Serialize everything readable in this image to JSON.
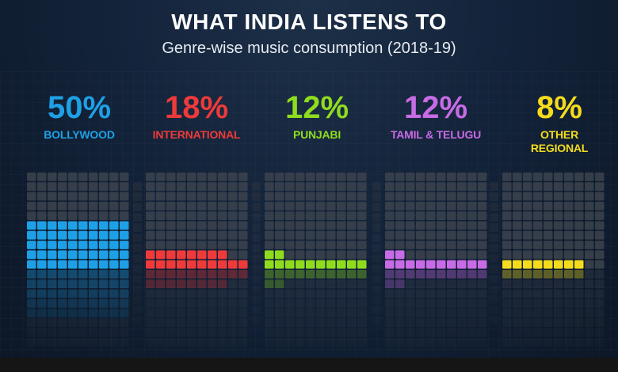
{
  "title": "WHAT INDIA LISTENS TO",
  "subtitle": "Genre-wise music consumption (2018-19)",
  "colors": {
    "background": "#0f1b2b",
    "empty_cell": "#3a414d",
    "bollywood": "#1ea0e6",
    "international": "#ee3a3a",
    "punjabi": "#8fdc1e",
    "tamil_telugu": "#c86be6",
    "other_regional": "#f4dc1c"
  },
  "chart_data": {
    "type": "waffle",
    "title": "WHAT INDIA LISTENS TO",
    "subtitle": "Genre-wise music consumption (2018-19)",
    "unit": "%",
    "categories": [
      {
        "name": "BOLLYWOOD",
        "value": 50,
        "label": "50%",
        "color": "#1ea0e6"
      },
      {
        "name": "INTERNATIONAL",
        "value": 18,
        "label": "18%",
        "color": "#ee3a3a"
      },
      {
        "name": "PUNJABI",
        "value": 12,
        "label": "12%",
        "color": "#8fdc1e"
      },
      {
        "name": "TAMIL & TELUGU",
        "value": 12,
        "label": "12%",
        "color": "#c86be6"
      },
      {
        "name": "OTHER REGIONAL",
        "value": 8,
        "label": "8%",
        "color": "#f4dc1c"
      }
    ]
  }
}
